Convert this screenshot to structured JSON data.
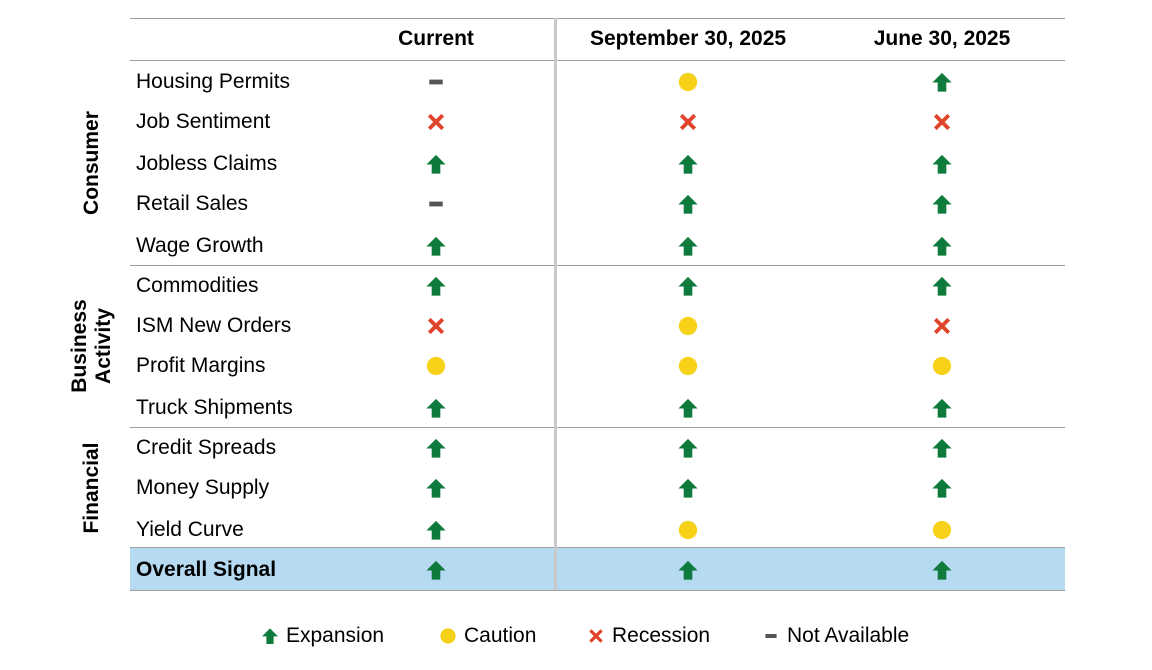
{
  "chart_data": {
    "type": "table",
    "columns": [
      "Current",
      "September 30, 2025",
      "June 30, 2025"
    ],
    "groups": [
      {
        "label": "Consumer",
        "rows": [
          {
            "indicator": "Housing Permits",
            "signals": [
              "not-available",
              "caution",
              "expansion"
            ]
          },
          {
            "indicator": "Job Sentiment",
            "signals": [
              "recession",
              "recession",
              "recession"
            ]
          },
          {
            "indicator": "Jobless Claims",
            "signals": [
              "expansion",
              "expansion",
              "expansion"
            ]
          },
          {
            "indicator": "Retail Sales",
            "signals": [
              "not-available",
              "expansion",
              "expansion"
            ]
          },
          {
            "indicator": "Wage Growth",
            "signals": [
              "expansion",
              "expansion",
              "expansion"
            ]
          }
        ]
      },
      {
        "label": "Business Activity",
        "rows": [
          {
            "indicator": "Commodities",
            "signals": [
              "expansion",
              "expansion",
              "expansion"
            ]
          },
          {
            "indicator": "ISM New Orders",
            "signals": [
              "recession",
              "caution",
              "recession"
            ]
          },
          {
            "indicator": "Profit Margins",
            "signals": [
              "caution",
              "caution",
              "caution"
            ]
          },
          {
            "indicator": "Truck Shipments",
            "signals": [
              "expansion",
              "expansion",
              "expansion"
            ]
          }
        ]
      },
      {
        "label": "Financial",
        "rows": [
          {
            "indicator": "Credit Spreads",
            "signals": [
              "expansion",
              "expansion",
              "expansion"
            ]
          },
          {
            "indicator": "Money Supply",
            "signals": [
              "expansion",
              "expansion",
              "expansion"
            ]
          },
          {
            "indicator": "Yield Curve",
            "signals": [
              "expansion",
              "caution",
              "caution"
            ]
          }
        ]
      }
    ],
    "overall": {
      "indicator": "Overall Signal",
      "signals": [
        "expansion",
        "expansion",
        "expansion"
      ]
    },
    "legend": [
      {
        "key": "expansion",
        "label": "Expansion"
      },
      {
        "key": "caution",
        "label": "Caution"
      },
      {
        "key": "recession",
        "label": "Recession"
      },
      {
        "key": "not-available",
        "label": "Not Available"
      }
    ]
  },
  "colors": {
    "expansion": "#0e7a3c",
    "caution": "#f7d117",
    "recession": "#e0442a",
    "not-available": "#555555",
    "highlight": "#b5daf1",
    "rule": "#9e9e9e"
  },
  "icons": {
    "expansion": "up-arrow-icon",
    "caution": "circle-icon",
    "recession": "x-icon",
    "not-available": "dash-icon"
  }
}
